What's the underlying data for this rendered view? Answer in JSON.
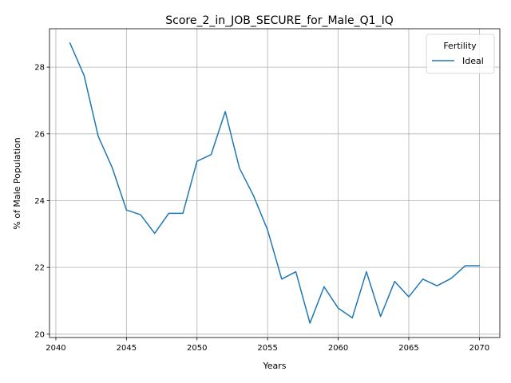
{
  "chart_data": {
    "type": "line",
    "title": "Score_2_in_JOB_SECURE_for_Male_Q1_IQ",
    "xlabel": "Years",
    "ylabel": "% of Male Population",
    "xlim": [
      2039.55,
      2071.45
    ],
    "ylim": [
      19.9,
      29.15
    ],
    "x_ticks": [
      2040,
      2045,
      2050,
      2055,
      2060,
      2065,
      2070
    ],
    "y_ticks": [
      20,
      22,
      24,
      26,
      28
    ],
    "grid": true,
    "legend": {
      "title": "Fertility",
      "placement": "top-right"
    },
    "x": [
      2041,
      2042,
      2043,
      2044,
      2045,
      2046,
      2047,
      2048,
      2049,
      2050,
      2051,
      2052,
      2053,
      2054,
      2055,
      2056,
      2057,
      2058,
      2059,
      2060,
      2061,
      2062,
      2063,
      2064,
      2065,
      2066,
      2067,
      2068,
      2069,
      2070
    ],
    "series": [
      {
        "name": "Ideal",
        "color": "#1f77b4",
        "values": [
          28.72,
          27.75,
          25.93,
          24.98,
          23.72,
          23.58,
          23.02,
          23.62,
          23.62,
          25.18,
          25.38,
          26.67,
          24.98,
          24.15,
          23.12,
          21.65,
          21.87,
          20.33,
          21.42,
          20.78,
          20.49,
          21.87,
          20.53,
          21.58,
          21.12,
          21.65,
          21.45,
          21.67,
          22.05,
          22.05
        ]
      }
    ]
  }
}
